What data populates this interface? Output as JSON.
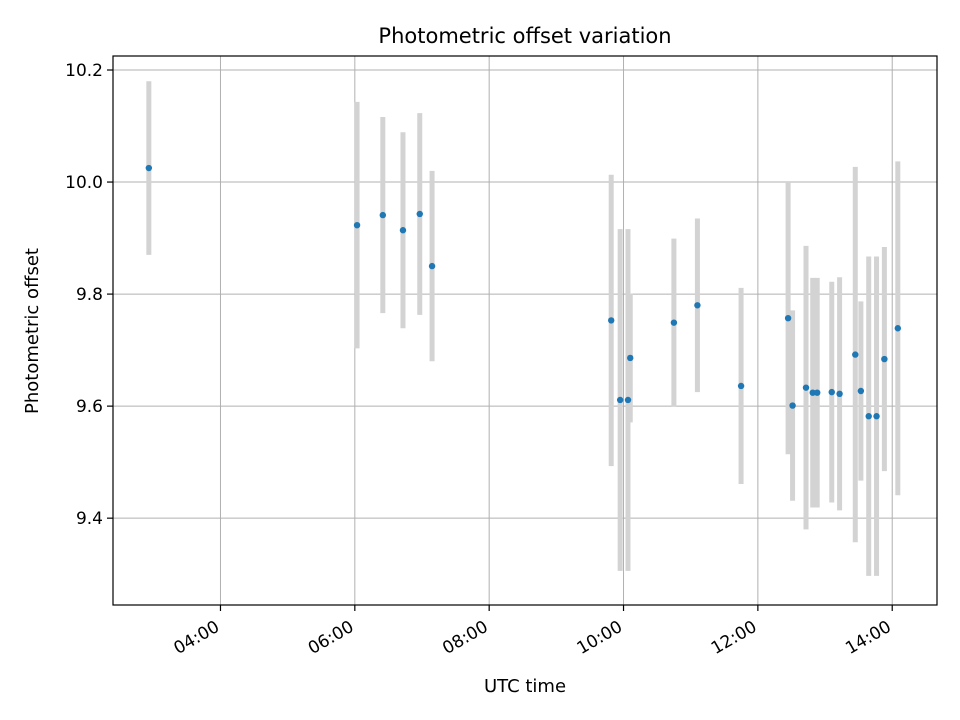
{
  "chart_data": {
    "type": "scatter",
    "title": "Photometric offset variation",
    "xlabel": "UTC time",
    "ylabel": "Photometric offset",
    "x_axis_kind": "time-of-day (hours, UTC)",
    "xlim": [
      "02:24",
      "14:40"
    ],
    "ylim": [
      9.245,
      10.225
    ],
    "x_ticks": [
      {
        "value": "04:00",
        "label": "04:00"
      },
      {
        "value": "06:00",
        "label": "06:00"
      },
      {
        "value": "08:00",
        "label": "08:00"
      },
      {
        "value": "10:00",
        "label": "10:00"
      },
      {
        "value": "12:00",
        "label": "12:00"
      },
      {
        "value": "14:00",
        "label": "14:00"
      }
    ],
    "y_ticks": [
      {
        "value": 9.4,
        "label": "9.4"
      },
      {
        "value": 9.6,
        "label": "9.6"
      },
      {
        "value": 9.8,
        "label": "9.8"
      },
      {
        "value": 10.0,
        "label": "10.0"
      },
      {
        "value": 10.2,
        "label": "10.2"
      }
    ],
    "grid": true,
    "legend": "none",
    "colors": {
      "point": "#1f77b4",
      "errorbar": "#d3d3d3",
      "grid": "#b0b0b0",
      "axes": "#000000"
    },
    "points": [
      {
        "x": "02:56",
        "y": 10.025,
        "err": 0.155
      },
      {
        "x": "06:02",
        "y": 9.923,
        "err": 0.22
      },
      {
        "x": "06:25",
        "y": 9.941,
        "err": 0.175
      },
      {
        "x": "06:43",
        "y": 9.914,
        "err": 0.175
      },
      {
        "x": "06:58",
        "y": 9.943,
        "err": 0.18
      },
      {
        "x": "07:09",
        "y": 9.85,
        "err": 0.17
      },
      {
        "x": "09:49",
        "y": 9.753,
        "err": 0.26
      },
      {
        "x": "09:57",
        "y": 9.611,
        "err": 0.305
      },
      {
        "x": "10:04",
        "y": 9.611,
        "err": 0.305
      },
      {
        "x": "10:06",
        "y": 9.686,
        "err": 0.115
      },
      {
        "x": "10:45",
        "y": 9.749,
        "err": 0.15
      },
      {
        "x": "11:06",
        "y": 9.78,
        "err": 0.155
      },
      {
        "x": "11:45",
        "y": 9.636,
        "err": 0.175
      },
      {
        "x": "12:27",
        "y": 9.757,
        "err": 0.243
      },
      {
        "x": "12:31",
        "y": 9.601,
        "err": 0.17
      },
      {
        "x": "12:43",
        "y": 9.633,
        "err": 0.253
      },
      {
        "x": "12:49",
        "y": 9.624,
        "err": 0.205
      },
      {
        "x": "12:53",
        "y": 9.624,
        "err": 0.205
      },
      {
        "x": "13:06",
        "y": 9.625,
        "err": 0.197
      },
      {
        "x": "13:13",
        "y": 9.622,
        "err": 0.208
      },
      {
        "x": "13:27",
        "y": 9.692,
        "err": 0.335
      },
      {
        "x": "13:32",
        "y": 9.627,
        "err": 0.16
      },
      {
        "x": "13:39",
        "y": 9.582,
        "err": 0.285
      },
      {
        "x": "13:46",
        "y": 9.582,
        "err": 0.285
      },
      {
        "x": "13:53",
        "y": 9.684,
        "err": 0.2
      },
      {
        "x": "14:05",
        "y": 9.739,
        "err": 0.298
      }
    ]
  }
}
